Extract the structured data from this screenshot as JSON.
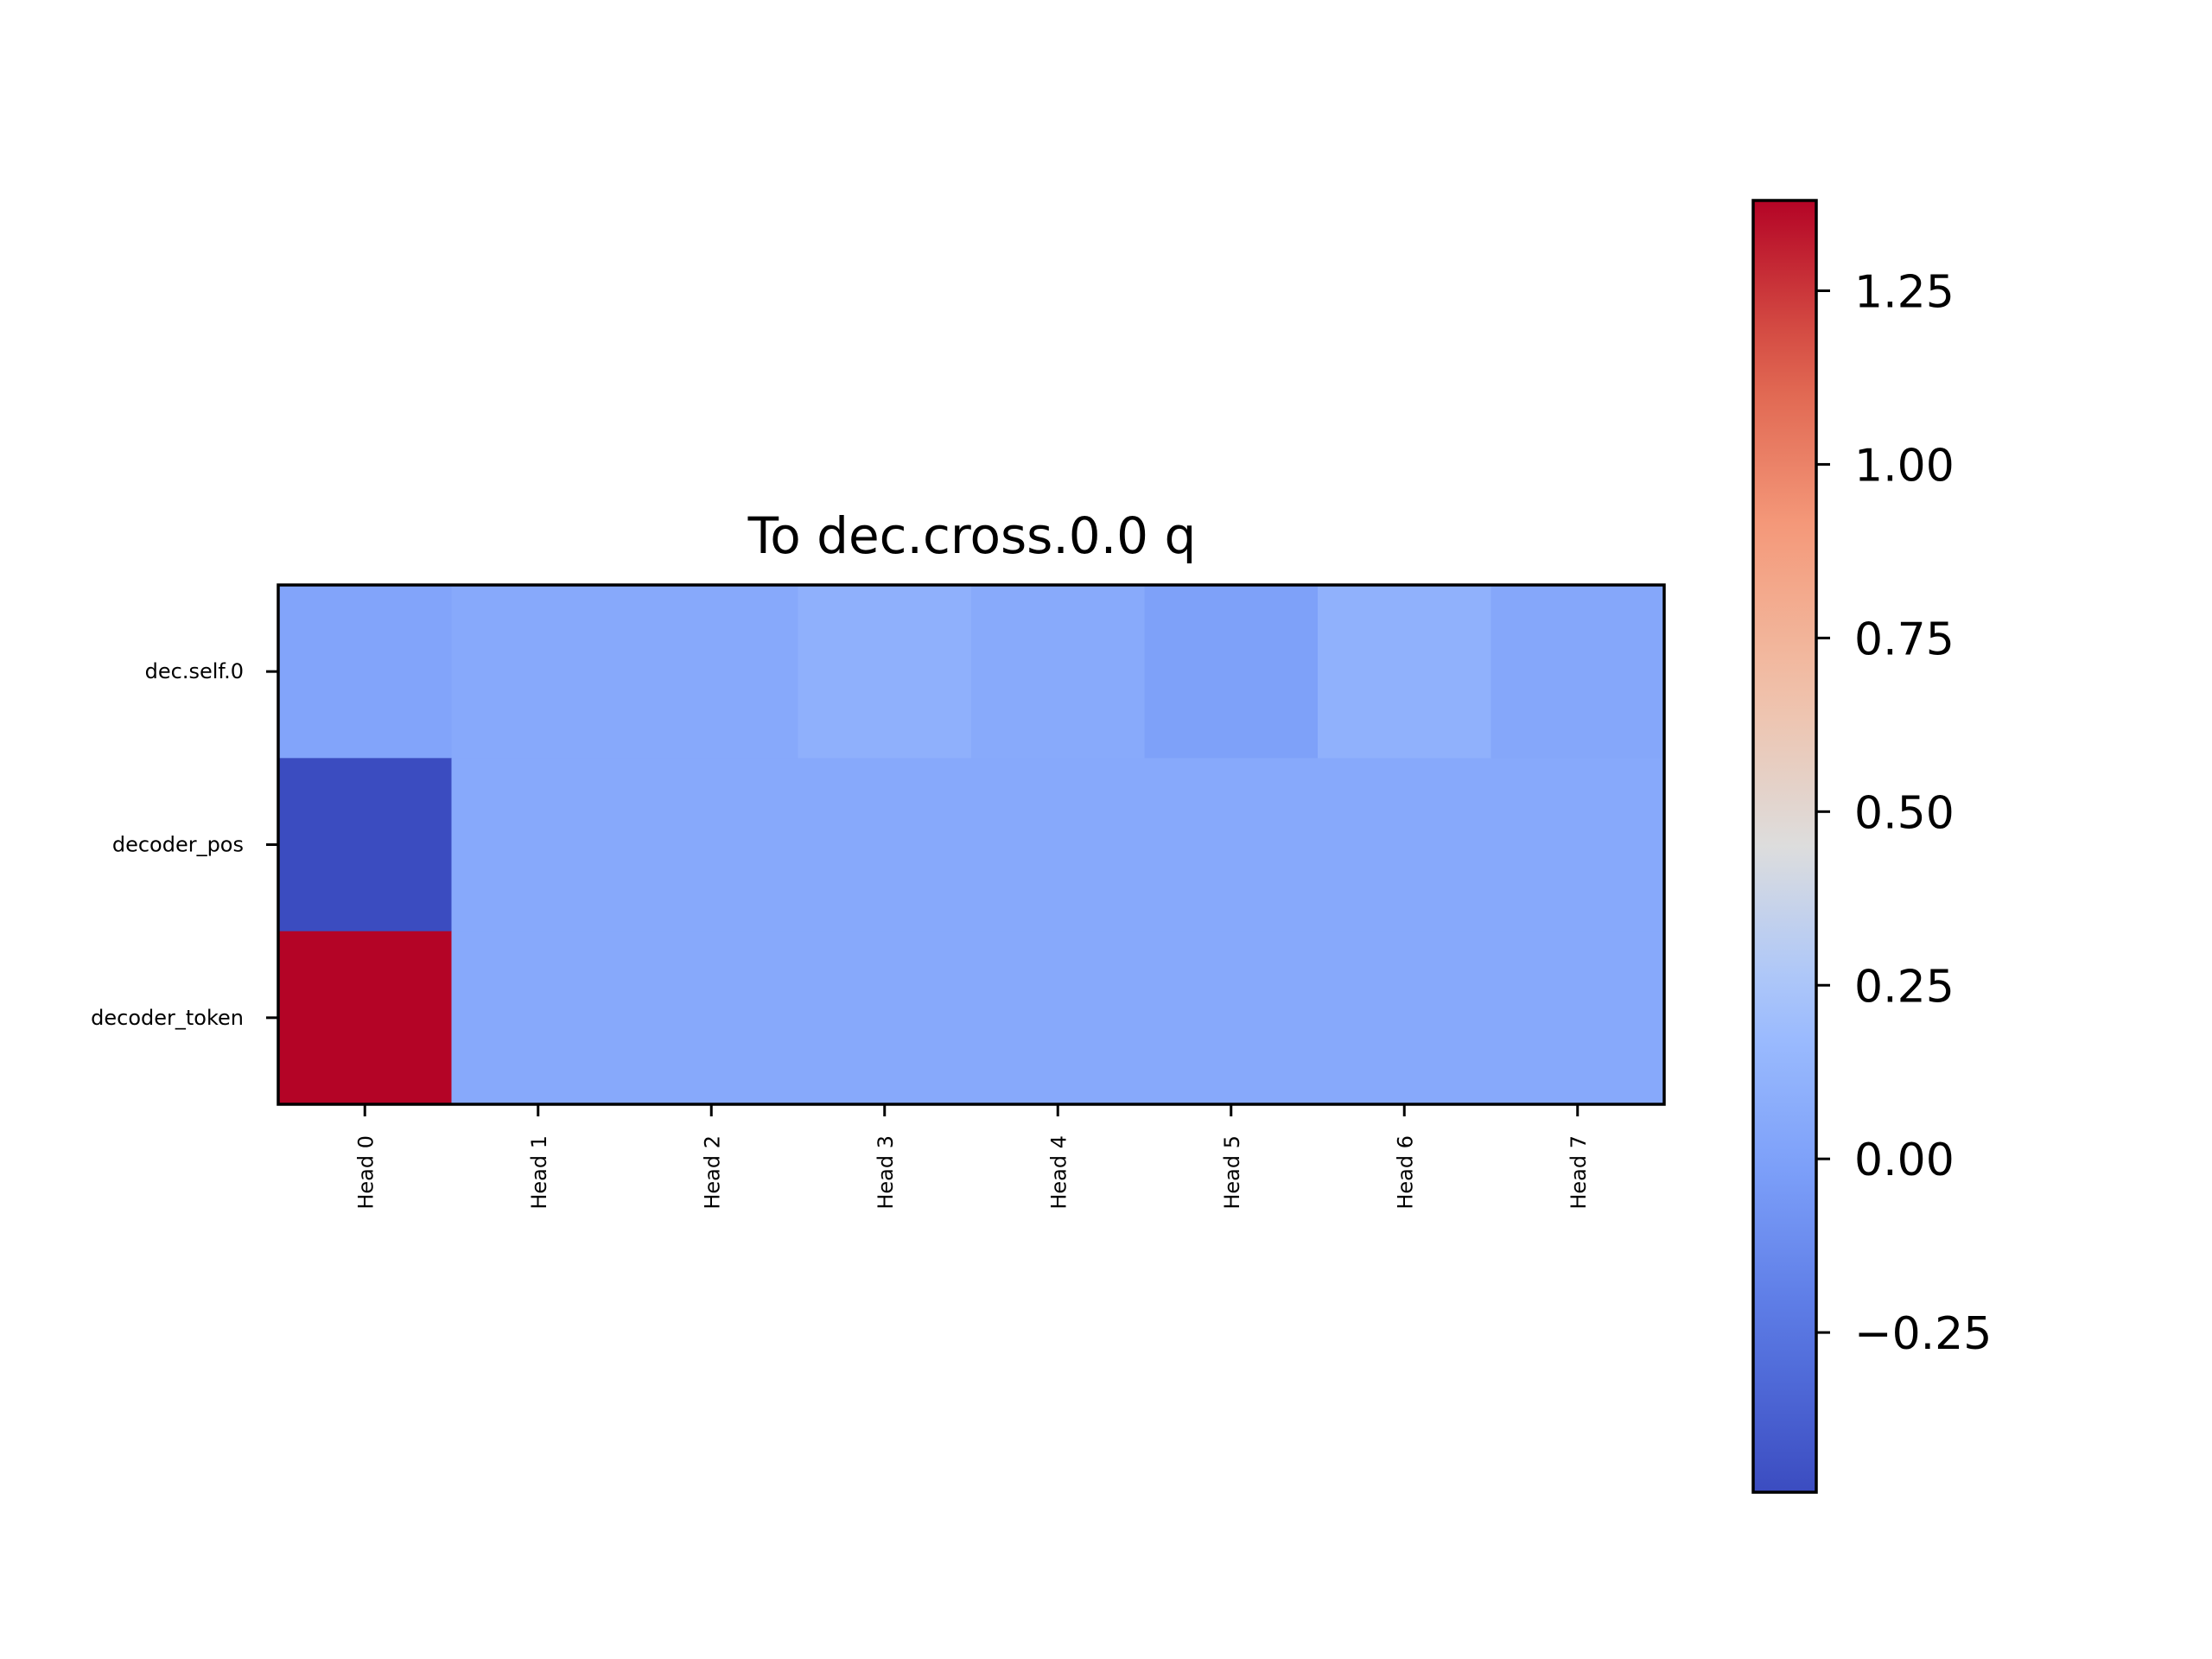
{
  "chart_data": {
    "type": "heatmap",
    "title": "To dec.cross.0.0 q",
    "x_categories": [
      "Head 0",
      "Head 1",
      "Head 2",
      "Head 3",
      "Head 4",
      "Head 5",
      "Head 6",
      "Head 7"
    ],
    "y_categories": [
      "dec.self.0",
      "decoder_pos",
      "decoder_token"
    ],
    "values": [
      [
        0.02,
        0.05,
        0.05,
        0.1,
        0.06,
        0.0,
        0.11,
        0.04
      ],
      [
        -0.48,
        0.05,
        0.05,
        0.05,
        0.05,
        0.05,
        0.05,
        0.05
      ],
      [
        1.38,
        0.05,
        0.05,
        0.05,
        0.05,
        0.05,
        0.05,
        0.05
      ]
    ],
    "colormap": "coolwarm",
    "colorbar": {
      "min": -0.48,
      "max": 1.38,
      "ticks": [
        -0.25,
        0.0,
        0.25,
        0.5,
        0.75,
        1.0,
        1.25
      ],
      "tick_labels": [
        "−0.25",
        "0.00",
        "0.25",
        "0.50",
        "0.75",
        "1.00",
        "1.25"
      ]
    }
  }
}
